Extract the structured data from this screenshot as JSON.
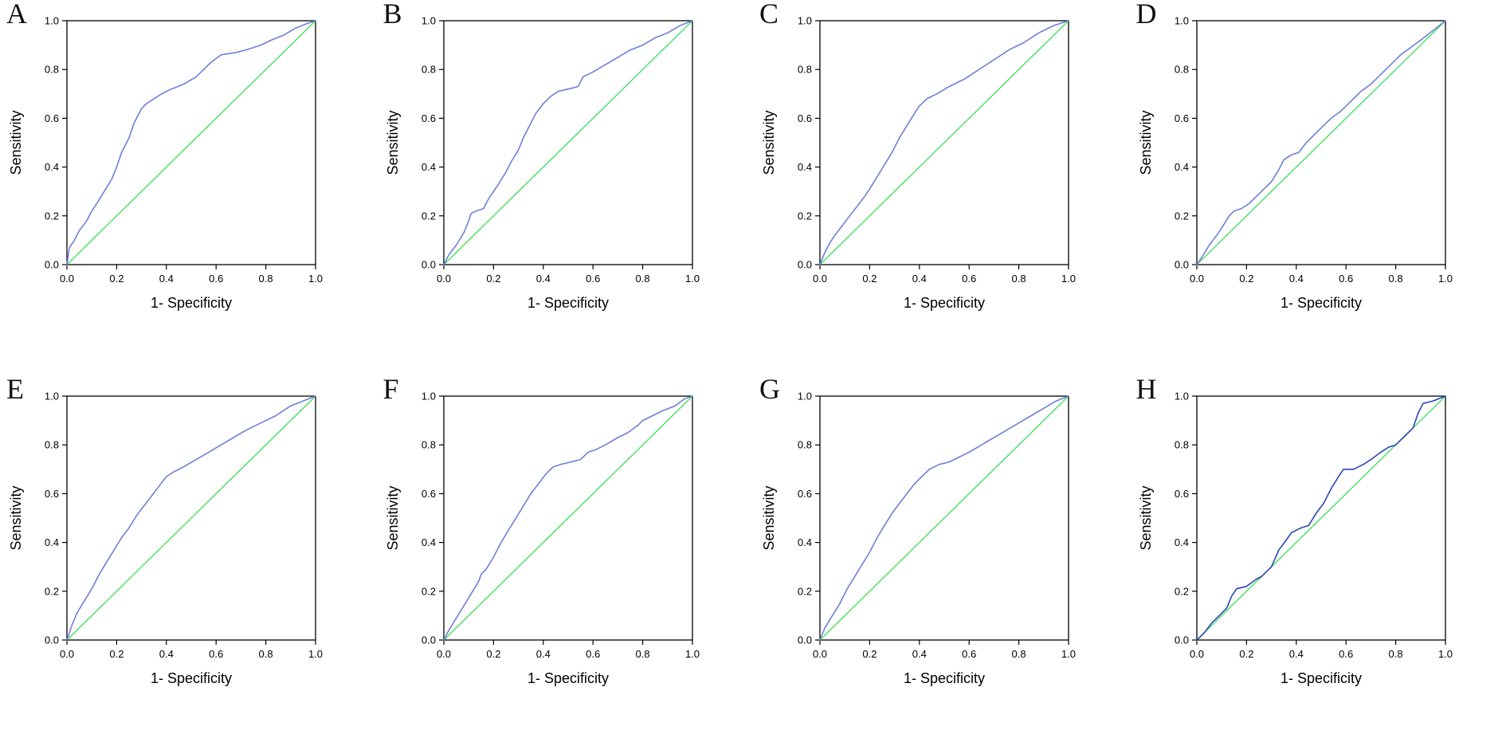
{
  "figure": {
    "background": "#ffffff",
    "rows": 2,
    "cols": 4,
    "axis": {
      "xlabel": "1- Specificity",
      "ylabel": "Sensitivity",
      "xlim": [
        0,
        1
      ],
      "ylim": [
        0,
        1
      ],
      "ticks": [
        0,
        0.2,
        0.4,
        0.6,
        0.8,
        1.0
      ],
      "tick_labels": [
        "0.0",
        "0.2",
        "0.4",
        "0.6",
        "0.8",
        "1.0"
      ],
      "grid": false,
      "legend": "none"
    },
    "colors": {
      "roc_curve": "#6f7fd9",
      "roc_curve_dark": "#2a46b8",
      "reference_line": "#45e05f",
      "axis_line": "#000000"
    }
  },
  "chart_data": [
    {
      "type": "line",
      "panel": "A",
      "title": "",
      "xlabel": "1- Specificity",
      "ylabel": "Sensitivity",
      "xlim": [
        0,
        1
      ],
      "ylim": [
        0,
        1
      ],
      "grid": false,
      "legend": "none",
      "series": [
        {
          "name": "ROC curve",
          "color": "#6f7fd9",
          "x": [
            0,
            0.01,
            0.03,
            0.05,
            0.08,
            0.1,
            0.12,
            0.15,
            0.18,
            0.2,
            0.22,
            0.25,
            0.27,
            0.3,
            0.32,
            0.35,
            0.38,
            0.42,
            0.47,
            0.52,
            0.55,
            0.58,
            0.62,
            0.68,
            0.72,
            0.78,
            0.82,
            0.87,
            0.92,
            0.97,
            1
          ],
          "y": [
            0,
            0.07,
            0.1,
            0.14,
            0.18,
            0.22,
            0.25,
            0.3,
            0.35,
            0.4,
            0.46,
            0.52,
            0.58,
            0.64,
            0.66,
            0.68,
            0.7,
            0.72,
            0.74,
            0.77,
            0.8,
            0.83,
            0.86,
            0.87,
            0.88,
            0.9,
            0.92,
            0.94,
            0.97,
            0.99,
            1
          ]
        },
        {
          "name": "reference diagonal",
          "color": "#45e05f",
          "x": [
            0,
            1
          ],
          "y": [
            0,
            1
          ]
        }
      ]
    },
    {
      "type": "line",
      "panel": "B",
      "title": "",
      "xlabel": "1- Specificity",
      "ylabel": "Sensitivity",
      "xlim": [
        0,
        1
      ],
      "ylim": [
        0,
        1
      ],
      "grid": false,
      "legend": "none",
      "series": [
        {
          "name": "ROC curve",
          "color": "#6f7fd9",
          "x": [
            0,
            0.02,
            0.05,
            0.08,
            0.1,
            0.11,
            0.13,
            0.16,
            0.18,
            0.2,
            0.22,
            0.25,
            0.27,
            0.3,
            0.32,
            0.35,
            0.37,
            0.4,
            0.43,
            0.46,
            0.5,
            0.54,
            0.56,
            0.58,
            0.6,
            0.65,
            0.7,
            0.75,
            0.8,
            0.85,
            0.9,
            0.95,
            1
          ],
          "y": [
            0,
            0.04,
            0.08,
            0.13,
            0.18,
            0.21,
            0.22,
            0.23,
            0.27,
            0.3,
            0.33,
            0.38,
            0.42,
            0.47,
            0.52,
            0.58,
            0.62,
            0.66,
            0.69,
            0.71,
            0.72,
            0.73,
            0.77,
            0.78,
            0.79,
            0.82,
            0.85,
            0.88,
            0.9,
            0.93,
            0.95,
            0.98,
            1
          ]
        },
        {
          "name": "reference diagonal",
          "color": "#45e05f",
          "x": [
            0,
            1
          ],
          "y": [
            0,
            1
          ]
        }
      ]
    },
    {
      "type": "line",
      "panel": "C",
      "title": "",
      "xlabel": "1- Specificity",
      "ylabel": "Sensitivity",
      "xlim": [
        0,
        1
      ],
      "ylim": [
        0,
        1
      ],
      "grid": false,
      "legend": "none",
      "series": [
        {
          "name": "ROC curve",
          "color": "#6f7fd9",
          "x": [
            0,
            0.02,
            0.04,
            0.06,
            0.09,
            0.12,
            0.15,
            0.18,
            0.2,
            0.23,
            0.26,
            0.29,
            0.32,
            0.35,
            0.38,
            0.4,
            0.43,
            0.47,
            0.52,
            0.58,
            0.64,
            0.7,
            0.76,
            0.82,
            0.88,
            0.94,
            1
          ],
          "y": [
            0,
            0.05,
            0.09,
            0.12,
            0.16,
            0.2,
            0.24,
            0.28,
            0.31,
            0.36,
            0.41,
            0.46,
            0.52,
            0.57,
            0.62,
            0.65,
            0.68,
            0.7,
            0.73,
            0.76,
            0.8,
            0.84,
            0.88,
            0.91,
            0.95,
            0.98,
            1
          ]
        },
        {
          "name": "reference diagonal",
          "color": "#45e05f",
          "x": [
            0,
            1
          ],
          "y": [
            0,
            1
          ]
        }
      ]
    },
    {
      "type": "line",
      "panel": "D",
      "title": "",
      "xlabel": "1- Specificity",
      "ylabel": "Sensitivity",
      "xlim": [
        0,
        1
      ],
      "ylim": [
        0,
        1
      ],
      "grid": false,
      "legend": "none",
      "series": [
        {
          "name": "ROC curve",
          "color": "#6f7fd9",
          "x": [
            0,
            0.02,
            0.05,
            0.08,
            0.1,
            0.13,
            0.15,
            0.18,
            0.21,
            0.24,
            0.27,
            0.3,
            0.33,
            0.35,
            0.38,
            0.41,
            0.44,
            0.47,
            0.5,
            0.54,
            0.58,
            0.62,
            0.66,
            0.7,
            0.74,
            0.78,
            0.82,
            0.86,
            0.9,
            0.95,
            1
          ],
          "y": [
            0,
            0.03,
            0.08,
            0.12,
            0.15,
            0.2,
            0.22,
            0.23,
            0.25,
            0.28,
            0.31,
            0.34,
            0.39,
            0.43,
            0.45,
            0.46,
            0.5,
            0.53,
            0.56,
            0.6,
            0.63,
            0.67,
            0.71,
            0.74,
            0.78,
            0.82,
            0.86,
            0.89,
            0.92,
            0.96,
            1
          ]
        },
        {
          "name": "reference diagonal",
          "color": "#45e05f",
          "x": [
            0,
            1
          ],
          "y": [
            0,
            1
          ]
        }
      ]
    },
    {
      "type": "line",
      "panel": "E",
      "title": "",
      "xlabel": "1- Specificity",
      "ylabel": "Sensitivity",
      "xlim": [
        0,
        1
      ],
      "ylim": [
        0,
        1
      ],
      "grid": false,
      "legend": "none",
      "series": [
        {
          "name": "ROC curve",
          "color": "#6f7fd9",
          "x": [
            0,
            0.02,
            0.04,
            0.07,
            0.1,
            0.13,
            0.16,
            0.19,
            0.22,
            0.25,
            0.28,
            0.31,
            0.34,
            0.37,
            0.4,
            0.43,
            0.47,
            0.52,
            0.57,
            0.62,
            0.67,
            0.72,
            0.78,
            0.84,
            0.9,
            0.95,
            1
          ],
          "y": [
            0,
            0.06,
            0.11,
            0.16,
            0.21,
            0.27,
            0.32,
            0.37,
            0.42,
            0.46,
            0.51,
            0.55,
            0.59,
            0.63,
            0.67,
            0.69,
            0.71,
            0.74,
            0.77,
            0.8,
            0.83,
            0.86,
            0.89,
            0.92,
            0.96,
            0.98,
            1
          ]
        },
        {
          "name": "reference diagonal",
          "color": "#45e05f",
          "x": [
            0,
            1
          ],
          "y": [
            0,
            1
          ]
        }
      ]
    },
    {
      "type": "line",
      "panel": "F",
      "title": "",
      "xlabel": "1- Specificity",
      "ylabel": "Sensitivity",
      "xlim": [
        0,
        1
      ],
      "ylim": [
        0,
        1
      ],
      "grid": false,
      "legend": "none",
      "series": [
        {
          "name": "ROC curve",
          "color": "#6f7fd9",
          "x": [
            0,
            0.02,
            0.05,
            0.08,
            0.11,
            0.14,
            0.15,
            0.17,
            0.2,
            0.23,
            0.26,
            0.29,
            0.32,
            0.35,
            0.38,
            0.41,
            0.44,
            0.47,
            0.51,
            0.55,
            0.58,
            0.61,
            0.65,
            0.7,
            0.74,
            0.78,
            0.8,
            0.84,
            0.88,
            0.93,
            0.97,
            1
          ],
          "y": [
            0,
            0.04,
            0.09,
            0.14,
            0.19,
            0.24,
            0.27,
            0.29,
            0.34,
            0.4,
            0.45,
            0.5,
            0.55,
            0.6,
            0.64,
            0.68,
            0.71,
            0.72,
            0.73,
            0.74,
            0.77,
            0.78,
            0.8,
            0.83,
            0.85,
            0.88,
            0.9,
            0.92,
            0.94,
            0.96,
            0.99,
            1
          ]
        },
        {
          "name": "reference diagonal",
          "color": "#45e05f",
          "x": [
            0,
            1
          ],
          "y": [
            0,
            1
          ]
        }
      ]
    },
    {
      "type": "line",
      "panel": "G",
      "title": "",
      "xlabel": "1- Specificity",
      "ylabel": "Sensitivity",
      "xlim": [
        0,
        1
      ],
      "ylim": [
        0,
        1
      ],
      "grid": false,
      "legend": "none",
      "series": [
        {
          "name": "ROC curve",
          "color": "#6f7fd9",
          "x": [
            0,
            0.02,
            0.05,
            0.08,
            0.11,
            0.14,
            0.17,
            0.2,
            0.23,
            0.26,
            0.29,
            0.32,
            0.35,
            0.38,
            0.41,
            0.44,
            0.48,
            0.52,
            0.56,
            0.6,
            0.65,
            0.7,
            0.75,
            0.8,
            0.85,
            0.9,
            0.95,
            1
          ],
          "y": [
            0,
            0.05,
            0.1,
            0.15,
            0.21,
            0.26,
            0.31,
            0.36,
            0.42,
            0.47,
            0.52,
            0.56,
            0.6,
            0.64,
            0.67,
            0.7,
            0.72,
            0.73,
            0.75,
            0.77,
            0.8,
            0.83,
            0.86,
            0.89,
            0.92,
            0.95,
            0.98,
            1
          ]
        },
        {
          "name": "reference diagonal",
          "color": "#45e05f",
          "x": [
            0,
            1
          ],
          "y": [
            0,
            1
          ]
        }
      ]
    },
    {
      "type": "line",
      "panel": "H",
      "title": "",
      "xlabel": "1- Specificity",
      "ylabel": "Sensitivity",
      "xlim": [
        0,
        1
      ],
      "ylim": [
        0,
        1
      ],
      "grid": false,
      "legend": "none",
      "series": [
        {
          "name": "ROC curve",
          "color": "#2a46b8",
          "x": [
            0,
            0.03,
            0.06,
            0.09,
            0.12,
            0.14,
            0.16,
            0.2,
            0.24,
            0.26,
            0.3,
            0.33,
            0.36,
            0.38,
            0.42,
            0.45,
            0.48,
            0.51,
            0.54,
            0.57,
            0.59,
            0.63,
            0.67,
            0.7,
            0.74,
            0.77,
            0.8,
            0.84,
            0.87,
            0.89,
            0.91,
            0.95,
            1
          ],
          "y": [
            0,
            0.03,
            0.07,
            0.1,
            0.13,
            0.18,
            0.21,
            0.22,
            0.25,
            0.26,
            0.3,
            0.37,
            0.41,
            0.44,
            0.46,
            0.47,
            0.52,
            0.56,
            0.62,
            0.67,
            0.7,
            0.7,
            0.72,
            0.74,
            0.77,
            0.79,
            0.8,
            0.84,
            0.87,
            0.93,
            0.97,
            0.98,
            1
          ]
        },
        {
          "name": "reference diagonal",
          "color": "#45e05f",
          "x": [
            0,
            1
          ],
          "y": [
            0,
            1
          ]
        }
      ]
    }
  ]
}
